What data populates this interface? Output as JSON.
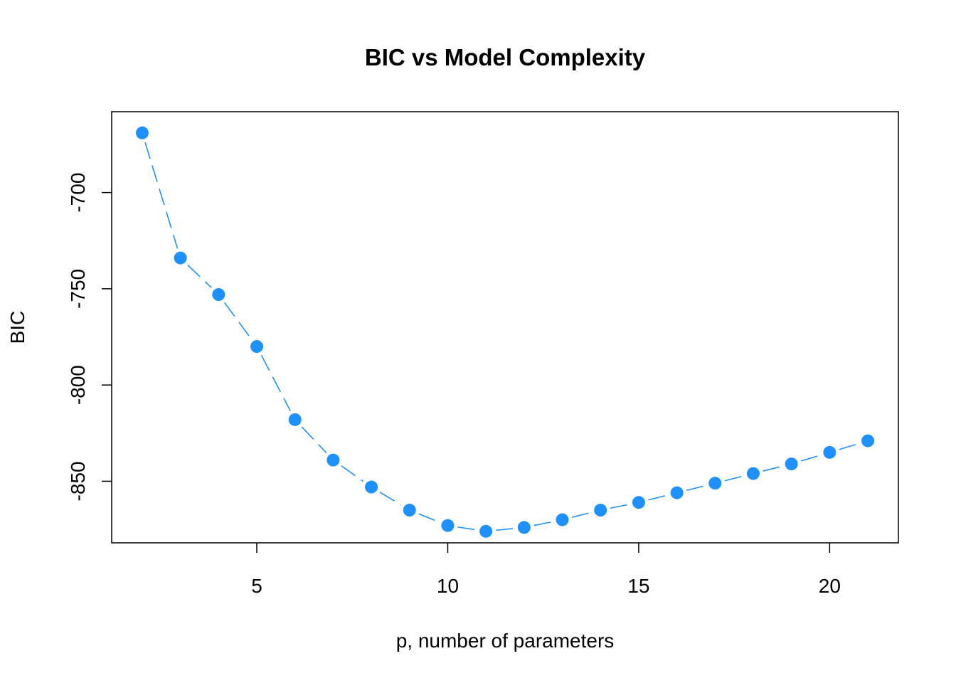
{
  "chart_data": {
    "type": "line",
    "title": "BIC vs Model Complexity",
    "xlabel": "p, number of parameters",
    "ylabel": "BIC",
    "xlim": [
      1.2,
      21.8
    ],
    "ylim": [
      -882,
      -658
    ],
    "xticks": [
      5,
      10,
      15,
      20
    ],
    "yticks": [
      -700,
      -750,
      -800,
      -850
    ],
    "grid": false,
    "legend": "none",
    "line_style": "dashed",
    "markers": "filled-circle",
    "color": "#1E90FF",
    "series": [
      {
        "x": [
          2,
          3,
          4,
          5,
          6,
          7,
          8,
          9,
          10,
          11,
          12,
          13,
          14,
          15,
          16,
          17,
          18,
          19,
          20,
          21
        ],
        "values": [
          -669,
          -734,
          -753,
          -780,
          -818,
          -839,
          -853,
          -865,
          -873,
          -876,
          -874,
          -870,
          -865,
          -861,
          -856,
          -851,
          -846,
          -841,
          -835,
          -829
        ]
      }
    ]
  }
}
